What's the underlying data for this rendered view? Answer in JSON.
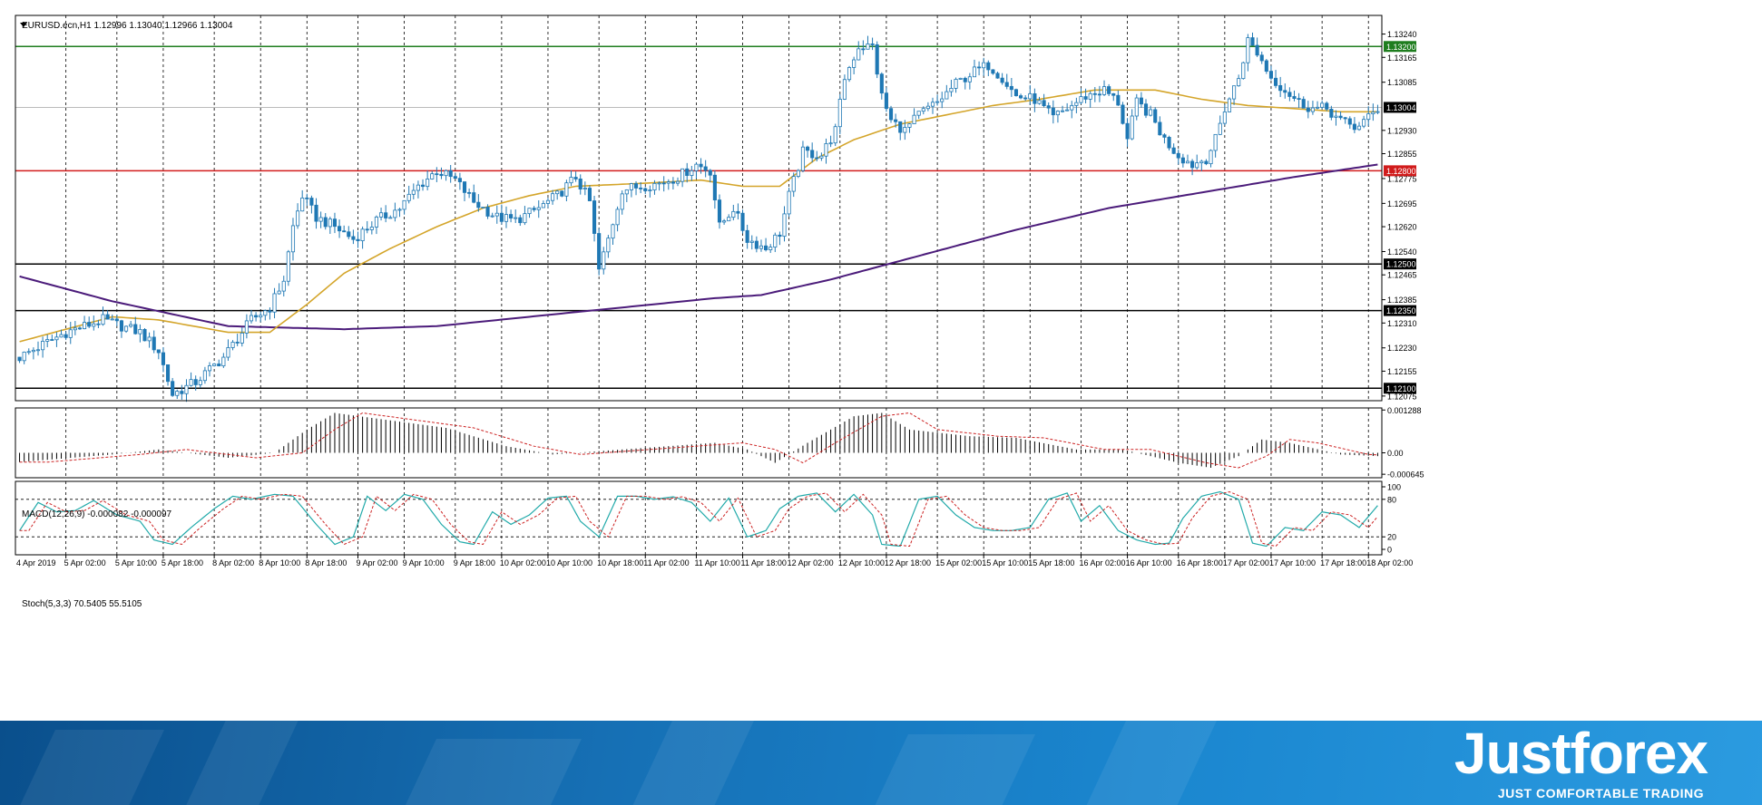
{
  "symbol_header": "EURUSD.ecn,H1  1.12996 1.13040 1.12966 1.13004",
  "macd_header": "MACD(12,26,9) -0.000082 -0.000097",
  "stoch_header": "Stoch(5,3,3) 70.5405 55.5105",
  "price_axis": {
    "ticks": [
      "1.13240",
      "1.13165",
      "1.13085",
      "1.12930",
      "1.12855",
      "1.12775",
      "1.12695",
      "1.12620",
      "1.12540",
      "1.12465",
      "1.12385",
      "1.12310",
      "1.12230",
      "1.12155",
      "1.12075"
    ],
    "ylim": [
      1.1206,
      1.133
    ]
  },
  "levels": [
    {
      "price": 1.132,
      "label": "1.13200",
      "color": "#1e7d1e"
    },
    {
      "price": 1.128,
      "label": "1.12800",
      "color": "#d11b1b"
    },
    {
      "price": 1.125,
      "label": "1.12500",
      "color": "#000000"
    },
    {
      "price": 1.1235,
      "label": "1.12350",
      "color": "#000000"
    },
    {
      "price": 1.121,
      "label": "1.12100",
      "color": "#000000"
    }
  ],
  "current_price": {
    "price": 1.13004,
    "label": "1.13004"
  },
  "macd_axis": {
    "ticks": [
      "0.001288",
      "0.00",
      "-0.000645"
    ],
    "ylim": [
      -0.00075,
      0.00135
    ]
  },
  "stoch_axis": {
    "ticks": [
      "100",
      "80",
      "20",
      "0"
    ],
    "levels": [
      80,
      20
    ]
  },
  "time_labels": [
    "4 Apr 2019",
    "5 Apr 02:00",
    "5 Apr 10:00",
    "5 Apr 18:00",
    "8 Apr 02:00",
    "8 Apr 10:00",
    "8 Apr 18:00",
    "9 Apr 02:00",
    "9 Apr 10:00",
    "9 Apr 18:00",
    "10 Apr 02:00",
    "10 Apr 10:00",
    "10 Apr 18:00",
    "11 Apr 02:00",
    "11 Apr 10:00",
    "11 Apr 18:00",
    "12 Apr 02:00",
    "12 Apr 10:00",
    "12 Apr 18:00",
    "15 Apr 02:00",
    "15 Apr 10:00",
    "15 Apr 18:00",
    "16 Apr 02:00",
    "16 Apr 10:00",
    "16 Apr 18:00",
    "17 Apr 02:00",
    "17 Apr 10:00",
    "17 Apr 18:00",
    "18 Apr 02:00"
  ],
  "chart_data": {
    "type": "candlestick",
    "symbol": "EURUSD.ecn",
    "timeframe": "H1",
    "close_anchors": [
      [
        0,
        1.122
      ],
      [
        10,
        1.1228
      ],
      [
        18,
        1.1232
      ],
      [
        26,
        1.1228
      ],
      [
        30,
        1.1222
      ],
      [
        33,
        1.1208
      ],
      [
        38,
        1.1212
      ],
      [
        44,
        1.122
      ],
      [
        50,
        1.1232
      ],
      [
        54,
        1.1236
      ],
      [
        57,
        1.1245
      ],
      [
        59,
        1.1262
      ],
      [
        61,
        1.1272
      ],
      [
        64,
        1.1265
      ],
      [
        68,
        1.1262
      ],
      [
        72,
        1.1258
      ],
      [
        77,
        1.1264
      ],
      [
        82,
        1.1268
      ],
      [
        86,
        1.1275
      ],
      [
        90,
        1.128
      ],
      [
        94,
        1.1277
      ],
      [
        98,
        1.127
      ],
      [
        103,
        1.1265
      ],
      [
        107,
        1.1264
      ],
      [
        112,
        1.1268
      ],
      [
        116,
        1.1272
      ],
      [
        120,
        1.1278
      ],
      [
        123,
        1.127
      ],
      [
        125,
        1.1248
      ],
      [
        127,
        1.1258
      ],
      [
        130,
        1.1274
      ],
      [
        134,
        1.1275
      ],
      [
        138,
        1.1276
      ],
      [
        142,
        1.1278
      ],
      [
        146,
        1.1282
      ],
      [
        149,
        1.128
      ],
      [
        151,
        1.1262
      ],
      [
        154,
        1.1268
      ],
      [
        157,
        1.1258
      ],
      [
        161,
        1.1255
      ],
      [
        164,
        1.126
      ],
      [
        166,
        1.1272
      ],
      [
        169,
        1.1286
      ],
      [
        173,
        1.1285
      ],
      [
        176,
        1.1293
      ],
      [
        178,
        1.131
      ],
      [
        181,
        1.132
      ],
      [
        184,
        1.132
      ],
      [
        186,
        1.1304
      ],
      [
        188,
        1.1296
      ],
      [
        191,
        1.1293
      ],
      [
        194,
        1.1298
      ],
      [
        198,
        1.1302
      ],
      [
        202,
        1.1308
      ],
      [
        206,
        1.1312
      ],
      [
        209,
        1.1314
      ],
      [
        212,
        1.131
      ],
      [
        215,
        1.1304
      ],
      [
        219,
        1.1303
      ],
      [
        223,
        1.1297
      ],
      [
        226,
        1.13
      ],
      [
        230,
        1.1304
      ],
      [
        234,
        1.1306
      ],
      [
        237,
        1.1302
      ],
      [
        239,
        1.129
      ],
      [
        241,
        1.1302
      ],
      [
        244,
        1.1298
      ],
      [
        247,
        1.129
      ],
      [
        250,
        1.1285
      ],
      [
        253,
        1.1282
      ],
      [
        256,
        1.1284
      ],
      [
        258,
        1.129
      ],
      [
        260,
        1.13
      ],
      [
        263,
        1.131
      ],
      [
        265,
        1.1322
      ],
      [
        267,
        1.1318
      ],
      [
        270,
        1.131
      ],
      [
        273,
        1.1306
      ],
      [
        276,
        1.1302
      ],
      [
        279,
        1.13
      ],
      [
        282,
        1.13
      ],
      [
        285,
        1.1296
      ],
      [
        288,
        1.1294
      ],
      [
        291,
        1.1297
      ],
      [
        293,
        1.13
      ]
    ],
    "candle_count": 294,
    "ema_anchors": [
      [
        0,
        1.1225
      ],
      [
        20,
        1.1233
      ],
      [
        30,
        1.1232
      ],
      [
        45,
        1.1228
      ],
      [
        54,
        1.1228
      ],
      [
        62,
        1.1237
      ],
      [
        70,
        1.1247
      ],
      [
        80,
        1.1255
      ],
      [
        90,
        1.1262
      ],
      [
        100,
        1.1268
      ],
      [
        110,
        1.1272
      ],
      [
        120,
        1.1275
      ],
      [
        135,
        1.1276
      ],
      [
        147,
        1.1277
      ],
      [
        156,
        1.1275
      ],
      [
        164,
        1.1275
      ],
      [
        172,
        1.1284
      ],
      [
        180,
        1.129
      ],
      [
        190,
        1.1295
      ],
      [
        200,
        1.1298
      ],
      [
        210,
        1.1301
      ],
      [
        220,
        1.1303
      ],
      [
        232,
        1.1306
      ],
      [
        245,
        1.1306
      ],
      [
        255,
        1.1303
      ],
      [
        265,
        1.1301
      ],
      [
        275,
        1.13
      ],
      [
        285,
        1.1299
      ],
      [
        293,
        1.1299
      ]
    ],
    "ma200_anchors": [
      [
        0,
        1.1246
      ],
      [
        20,
        1.1238
      ],
      [
        45,
        1.123
      ],
      [
        70,
        1.1229
      ],
      [
        90,
        1.123
      ],
      [
        110,
        1.1233
      ],
      [
        130,
        1.1236
      ],
      [
        150,
        1.1239
      ],
      [
        160,
        1.124
      ],
      [
        175,
        1.1245
      ],
      [
        195,
        1.1253
      ],
      [
        215,
        1.1261
      ],
      [
        235,
        1.1268
      ],
      [
        255,
        1.1273
      ],
      [
        275,
        1.1278
      ],
      [
        293,
        1.1282
      ]
    ],
    "macd_anchors": [
      [
        0,
        -0.00028
      ],
      [
        20,
        -5e-05
      ],
      [
        30,
        0.0001
      ],
      [
        45,
        -0.00015
      ],
      [
        55,
        0.0
      ],
      [
        62,
        0.0007
      ],
      [
        68,
        0.0012
      ],
      [
        76,
        0.00105
      ],
      [
        92,
        0.00075
      ],
      [
        105,
        0.0002
      ],
      [
        115,
        -5e-05
      ],
      [
        125,
        5e-05
      ],
      [
        135,
        0.00015
      ],
      [
        150,
        0.0003
      ],
      [
        157,
        0.0001
      ],
      [
        163,
        -0.0003
      ],
      [
        170,
        0.0003
      ],
      [
        180,
        0.0011
      ],
      [
        186,
        0.0012
      ],
      [
        192,
        0.0007
      ],
      [
        205,
        0.0005
      ],
      [
        215,
        0.00045
      ],
      [
        228,
        0.0001
      ],
      [
        238,
        0.0001
      ],
      [
        250,
        -0.0003
      ],
      [
        257,
        -0.00045
      ],
      [
        263,
        -0.0001
      ],
      [
        268,
        0.0004
      ],
      [
        274,
        0.0003
      ],
      [
        285,
        -5e-05
      ],
      [
        293,
        -0.0001
      ]
    ],
    "stoch_anchors": [
      [
        0,
        30
      ],
      [
        4,
        75
      ],
      [
        8,
        60
      ],
      [
        12,
        62
      ],
      [
        16,
        78
      ],
      [
        21,
        55
      ],
      [
        26,
        45
      ],
      [
        29,
        15
      ],
      [
        33,
        8
      ],
      [
        37,
        35
      ],
      [
        42,
        65
      ],
      [
        46,
        85
      ],
      [
        50,
        80
      ],
      [
        55,
        88
      ],
      [
        59,
        85
      ],
      [
        64,
        40
      ],
      [
        68,
        8
      ],
      [
        72,
        20
      ],
      [
        75,
        85
      ],
      [
        79,
        62
      ],
      [
        83,
        88
      ],
      [
        87,
        80
      ],
      [
        91,
        40
      ],
      [
        95,
        12
      ],
      [
        98,
        8
      ],
      [
        102,
        60
      ],
      [
        106,
        40
      ],
      [
        110,
        55
      ],
      [
        114,
        82
      ],
      [
        118,
        85
      ],
      [
        121,
        45
      ],
      [
        125,
        20
      ],
      [
        129,
        85
      ],
      [
        133,
        85
      ],
      [
        137,
        80
      ],
      [
        141,
        84
      ],
      [
        145,
        75
      ],
      [
        149,
        45
      ],
      [
        153,
        82
      ],
      [
        157,
        20
      ],
      [
        161,
        30
      ],
      [
        164,
        65
      ],
      [
        168,
        85
      ],
      [
        172,
        90
      ],
      [
        176,
        60
      ],
      [
        180,
        88
      ],
      [
        184,
        55
      ],
      [
        186,
        8
      ],
      [
        190,
        5
      ],
      [
        194,
        80
      ],
      [
        198,
        85
      ],
      [
        202,
        55
      ],
      [
        206,
        35
      ],
      [
        210,
        30
      ],
      [
        214,
        30
      ],
      [
        218,
        35
      ],
      [
        222,
        80
      ],
      [
        226,
        90
      ],
      [
        229,
        45
      ],
      [
        233,
        70
      ],
      [
        237,
        30
      ],
      [
        241,
        15
      ],
      [
        245,
        8
      ],
      [
        248,
        10
      ],
      [
        251,
        50
      ],
      [
        255,
        85
      ],
      [
        259,
        92
      ],
      [
        263,
        80
      ],
      [
        266,
        10
      ],
      [
        269,
        5
      ],
      [
        273,
        35
      ],
      [
        277,
        30
      ],
      [
        281,
        60
      ],
      [
        285,
        55
      ],
      [
        289,
        35
      ],
      [
        293,
        70
      ]
    ],
    "colors": {
      "bull": "#ffffff",
      "bear": "#1f78b4",
      "candle_line": "#1f78b4",
      "ema": "#d4a52a",
      "ma200": "#4b1b7a",
      "macd": "#000000",
      "signal": "#cc2222",
      "stoch_main": "#22aaaa",
      "stoch_signal": "#cc2222"
    }
  },
  "banner": {
    "brand": "Justforex",
    "tagline": "JUST COMFORTABLE TRADING"
  }
}
